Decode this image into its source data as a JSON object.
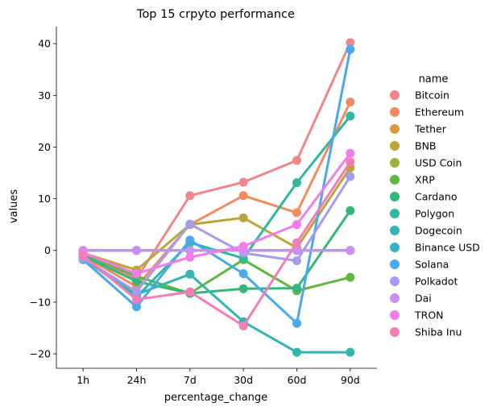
{
  "chart_data": {
    "type": "line",
    "title": "Top 15 crpyto performance",
    "xlabel": "percentage_change",
    "ylabel": "values",
    "categories": [
      "1h",
      "24h",
      "7d",
      "30d",
      "60d",
      "90d"
    ],
    "ylim": [
      -22.8,
      43.3
    ],
    "yticks": [
      -20,
      -10,
      0,
      10,
      20,
      30,
      40
    ],
    "grid": false,
    "legend": {
      "title": "name",
      "placement": "right-outside"
    },
    "series": [
      {
        "name": "Bitcoin",
        "color": "#f0868b",
        "values": [
          -1.2,
          -5.5,
          10.6,
          13.2,
          17.4,
          40.2
        ]
      },
      {
        "name": "Ethereum",
        "color": "#f28c60",
        "values": [
          -1.0,
          -7.0,
          5.0,
          10.6,
          7.3,
          28.7
        ]
      },
      {
        "name": "Tether",
        "color": "#d89d3a",
        "values": [
          0.0,
          0.0,
          0.0,
          0.0,
          0.0,
          0.0
        ]
      },
      {
        "name": "BNB",
        "color": "#bba43c",
        "values": [
          -0.5,
          -3.8,
          5.0,
          6.3,
          0.5,
          16.0
        ]
      },
      {
        "name": "USD Coin",
        "color": "#9eb13a",
        "values": [
          0.0,
          0.0,
          0.0,
          0.0,
          0.0,
          0.0
        ]
      },
      {
        "name": "XRP",
        "color": "#5db83f",
        "values": [
          -0.8,
          -5.0,
          -8.3,
          -1.8,
          -7.8,
          -5.2
        ]
      },
      {
        "name": "Cardano",
        "color": "#35b779",
        "values": [
          -1.0,
          -6.0,
          -8.3,
          -7.4,
          -7.3,
          7.7
        ]
      },
      {
        "name": "Polygon",
        "color": "#2fb79f",
        "values": [
          -1.5,
          -9.0,
          1.5,
          -1.5,
          13.1,
          26.0
        ]
      },
      {
        "name": "Dogecoin",
        "color": "#33b5b0",
        "values": [
          -1.3,
          -8.5,
          -4.6,
          -13.8,
          -19.7,
          -19.7
        ]
      },
      {
        "name": "Binance USD",
        "color": "#38b2c7",
        "values": [
          0.0,
          0.0,
          0.0,
          0.0,
          0.0,
          0.0
        ]
      },
      {
        "name": "Solana",
        "color": "#4aa8ef",
        "values": [
          -1.8,
          -10.9,
          2.0,
          -4.5,
          -14.1,
          38.9
        ]
      },
      {
        "name": "Polkadot",
        "color": "#a59cf2",
        "values": [
          -1.5,
          -8.0,
          5.1,
          -0.5,
          -2.0,
          14.3
        ]
      },
      {
        "name": "Dai",
        "color": "#cc8ef3",
        "values": [
          0.0,
          0.0,
          0.0,
          0.0,
          0.0,
          0.0
        ]
      },
      {
        "name": "TRON",
        "color": "#f27de9",
        "values": [
          -0.5,
          -4.5,
          -1.3,
          0.8,
          5.0,
          18.8
        ]
      },
      {
        "name": "Shiba Inu",
        "color": "#f37db6",
        "values": [
          -1.0,
          -9.5,
          -8.0,
          -14.6,
          1.5,
          17.1
        ]
      }
    ]
  }
}
